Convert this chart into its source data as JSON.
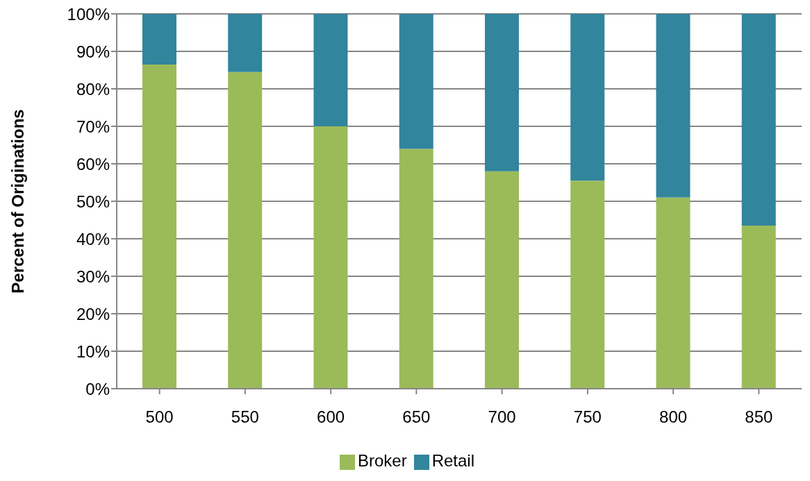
{
  "chart_data": {
    "type": "bar",
    "stacked": true,
    "ylabel": "Percent of Originations",
    "categories": [
      "500",
      "550",
      "600",
      "650",
      "700",
      "750",
      "800",
      "850"
    ],
    "series": [
      {
        "name": "Broker",
        "color": "#9bbb59",
        "values": [
          86.5,
          84.5,
          70,
          64,
          58,
          55.5,
          51,
          43.5
        ]
      },
      {
        "name": "Retail",
        "color": "#31859c",
        "values": [
          13.5,
          15.5,
          30,
          36,
          42,
          44.5,
          49,
          56.5
        ]
      }
    ],
    "ylim": [
      0,
      100
    ],
    "yticks": [
      {
        "value": 0,
        "label": "0%"
      },
      {
        "value": 10,
        "label": "10%"
      },
      {
        "value": 20,
        "label": "20%"
      },
      {
        "value": 30,
        "label": "30%"
      },
      {
        "value": 40,
        "label": "40%"
      },
      {
        "value": 50,
        "label": "50%"
      },
      {
        "value": 60,
        "label": "60%"
      },
      {
        "value": 70,
        "label": "70%"
      },
      {
        "value": 80,
        "label": "80%"
      },
      {
        "value": 90,
        "label": "90%"
      },
      {
        "value": 100,
        "label": "100%"
      }
    ],
    "grid": "y",
    "legend": "bottom"
  }
}
